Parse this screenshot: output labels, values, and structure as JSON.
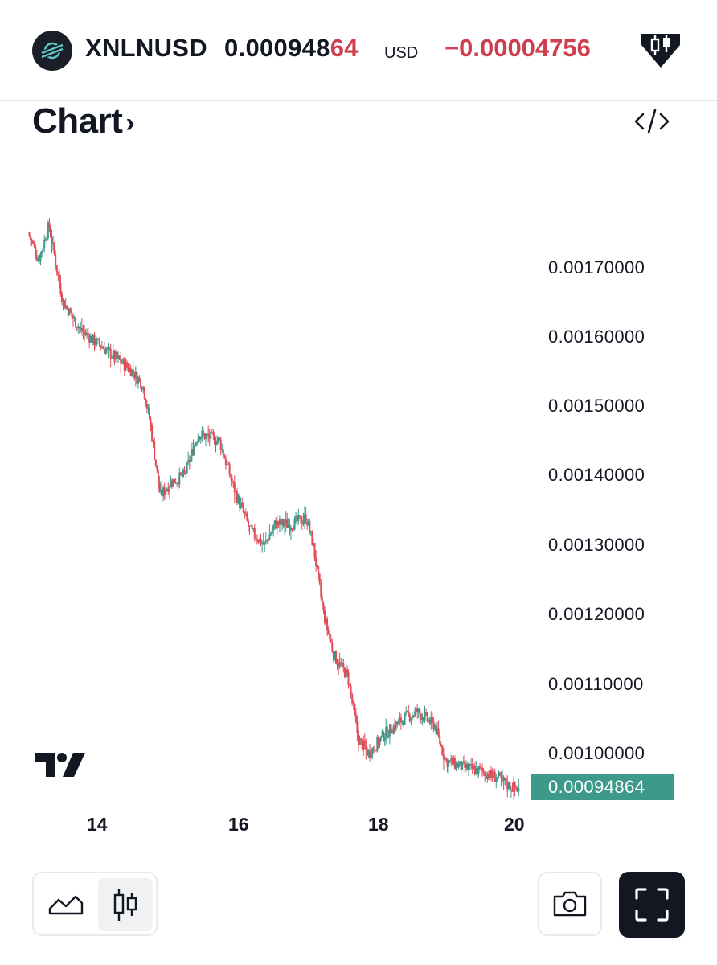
{
  "header": {
    "symbol": "XNLNUSD",
    "price_main": "0.000948",
    "price_tail": "64",
    "currency": "USD",
    "change": "−0.00004756",
    "logo_icon": "stellar-logo-icon",
    "brand_icon": "candlestick-badge-icon"
  },
  "section": {
    "title": "Chart",
    "chevron": "›",
    "embed_icon": "code-embed-icon"
  },
  "colors": {
    "up": "#3d9a8a",
    "down": "#e04b57",
    "negative_text": "#cf3e4e",
    "last_price_badge": "#3d9a8a"
  },
  "chart_data": {
    "type": "candlestick",
    "y_ticks": [
      "0.00170000",
      "0.00160000",
      "0.00150000",
      "0.00140000",
      "0.00130000",
      "0.00120000",
      "0.00110000",
      "0.00100000"
    ],
    "x_ticks": [
      "14",
      "16",
      "18",
      "20"
    ],
    "last_price": "0.00094864",
    "ylim": [
      0.000948,
      0.00177
    ],
    "price_path": [
      {
        "day": 13.0,
        "price": 0.00175
      },
      {
        "day": 13.15,
        "price": 0.00171
      },
      {
        "day": 13.3,
        "price": 0.00176
      },
      {
        "day": 13.5,
        "price": 0.00165
      },
      {
        "day": 13.75,
        "price": 0.00161
      },
      {
        "day": 14.0,
        "price": 0.00159
      },
      {
        "day": 14.25,
        "price": 0.00157
      },
      {
        "day": 14.5,
        "price": 0.00155
      },
      {
        "day": 14.65,
        "price": 0.00153
      },
      {
        "day": 14.75,
        "price": 0.00148
      },
      {
        "day": 14.9,
        "price": 0.00137
      },
      {
        "day": 15.05,
        "price": 0.00139
      },
      {
        "day": 15.25,
        "price": 0.0014
      },
      {
        "day": 15.45,
        "price": 0.00146
      },
      {
        "day": 15.75,
        "price": 0.00145
      },
      {
        "day": 16.0,
        "price": 0.00137
      },
      {
        "day": 16.2,
        "price": 0.00132
      },
      {
        "day": 16.4,
        "price": 0.0013
      },
      {
        "day": 16.55,
        "price": 0.00133
      },
      {
        "day": 16.8,
        "price": 0.00133
      },
      {
        "day": 17.0,
        "price": 0.00134
      },
      {
        "day": 17.1,
        "price": 0.0013
      },
      {
        "day": 17.25,
        "price": 0.0012
      },
      {
        "day": 17.4,
        "price": 0.00114
      },
      {
        "day": 17.6,
        "price": 0.00111
      },
      {
        "day": 17.75,
        "price": 0.00102
      },
      {
        "day": 17.9,
        "price": 0.001
      },
      {
        "day": 18.15,
        "price": 0.00103
      },
      {
        "day": 18.4,
        "price": 0.00105
      },
      {
        "day": 18.6,
        "price": 0.00106
      },
      {
        "day": 18.85,
        "price": 0.00104
      },
      {
        "day": 19.0,
        "price": 0.00099
      },
      {
        "day": 19.25,
        "price": 0.00098
      },
      {
        "day": 19.5,
        "price": 0.000975
      },
      {
        "day": 19.75,
        "price": 0.000965
      },
      {
        "day": 19.9,
        "price": 0.000955
      },
      {
        "day": 20.05,
        "price": 0.000948
      }
    ]
  },
  "toolbar": {
    "line_chart_icon": "area-chart-icon",
    "candles_icon": "candlestick-icon",
    "camera_icon": "camera-icon",
    "fullscreen_icon": "fullscreen-icon"
  }
}
